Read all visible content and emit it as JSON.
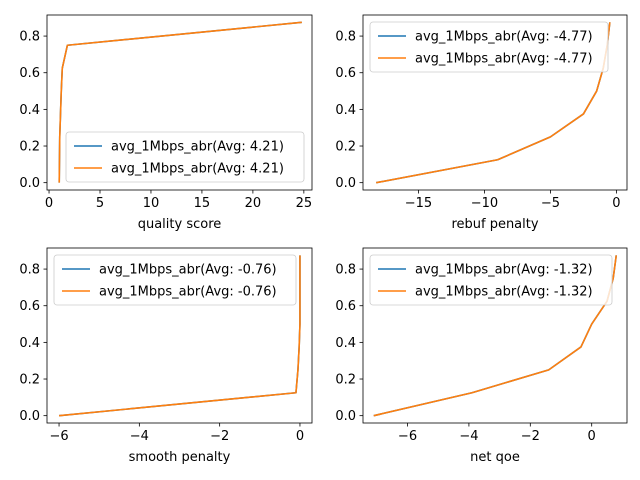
{
  "figure": {
    "background": "#ffffff"
  },
  "series_colors": [
    "#1f77b4",
    "#ff7f0e"
  ],
  "chart_data": [
    {
      "type": "line",
      "xlabel": "quality score",
      "xlim": [
        -0.2,
        25.8
      ],
      "ylim": [
        -0.04,
        0.915
      ],
      "xticks": [
        0,
        5,
        10,
        15,
        20,
        25
      ],
      "xtick_labels": [
        "0",
        "5",
        "10",
        "15",
        "20",
        "25"
      ],
      "yticks": [
        0.0,
        0.2,
        0.4,
        0.6,
        0.8
      ],
      "ytick_labels": [
        "0.0",
        "0.2",
        "0.4",
        "0.6",
        "0.8"
      ],
      "legend_loc": "lower-right",
      "series": [
        {
          "name": "avg_1Mbps_abr(Avg: 4.21)",
          "x": [
            1.0,
            1.05,
            1.2,
            1.3,
            1.8,
            24.8
          ],
          "y": [
            0.0,
            0.25,
            0.5,
            0.625,
            0.75,
            0.875
          ]
        },
        {
          "name": "avg_1Mbps_abr(Avg: 4.21)",
          "x": [
            1.0,
            1.05,
            1.2,
            1.3,
            1.8,
            24.8
          ],
          "y": [
            0.0,
            0.25,
            0.5,
            0.625,
            0.75,
            0.875
          ]
        }
      ]
    },
    {
      "type": "line",
      "xlabel": "rebuf penalty",
      "xlim": [
        -19.2,
        0.8
      ],
      "ylim": [
        -0.04,
        0.915
      ],
      "xticks": [
        -15,
        -10,
        -5,
        0
      ],
      "xtick_labels": [
        "−15",
        "−10",
        "−5",
        "0"
      ],
      "yticks": [
        0.0,
        0.2,
        0.4,
        0.6,
        0.8
      ],
      "ytick_labels": [
        "0.0",
        "0.2",
        "0.4",
        "0.6",
        "0.8"
      ],
      "legend_loc": "upper-left",
      "series": [
        {
          "name": "avg_1Mbps_abr(Avg: -4.77)",
          "x": [
            -18.2,
            -9.0,
            -5.0,
            -2.5,
            -1.5,
            -1.0,
            -0.7,
            -0.5
          ],
          "y": [
            0.0,
            0.125,
            0.25,
            0.375,
            0.5,
            0.625,
            0.75,
            0.875
          ]
        },
        {
          "name": "avg_1Mbps_abr(Avg: -4.77)",
          "x": [
            -18.2,
            -9.0,
            -5.0,
            -2.5,
            -1.5,
            -1.0,
            -0.7,
            -0.5
          ],
          "y": [
            0.0,
            0.125,
            0.25,
            0.375,
            0.5,
            0.625,
            0.75,
            0.875
          ]
        }
      ]
    },
    {
      "type": "line",
      "xlabel": "smooth penalty",
      "xlim": [
        -6.3,
        0.3
      ],
      "ylim": [
        -0.04,
        0.915
      ],
      "xticks": [
        -6,
        -4,
        -2,
        0
      ],
      "xtick_labels": [
        "−6",
        "−4",
        "−2",
        "0"
      ],
      "yticks": [
        0.0,
        0.2,
        0.4,
        0.6,
        0.8
      ],
      "ytick_labels": [
        "0.0",
        "0.2",
        "0.4",
        "0.6",
        "0.8"
      ],
      "legend_loc": "upper-left",
      "series": [
        {
          "name": "avg_1Mbps_abr(Avg: -0.76)",
          "x": [
            -6.0,
            -0.1,
            -0.05,
            -0.02,
            0.0,
            0.0,
            0.0
          ],
          "y": [
            0.0,
            0.125,
            0.25,
            0.375,
            0.5,
            0.625,
            0.875
          ]
        },
        {
          "name": "avg_1Mbps_abr(Avg: -0.76)",
          "x": [
            -6.0,
            -0.1,
            -0.05,
            -0.02,
            0.0,
            0.0,
            0.0
          ],
          "y": [
            0.0,
            0.125,
            0.25,
            0.375,
            0.5,
            0.625,
            0.875
          ]
        }
      ]
    },
    {
      "type": "line",
      "xlabel": "net qoe",
      "xlim": [
        -7.45,
        1.15
      ],
      "ylim": [
        -0.04,
        0.915
      ],
      "xticks": [
        -6,
        -4,
        -2,
        0
      ],
      "xtick_labels": [
        "−6",
        "−4",
        "−2",
        "0"
      ],
      "yticks": [
        0.0,
        0.2,
        0.4,
        0.6,
        0.8
      ],
      "ytick_labels": [
        "0.0",
        "0.2",
        "0.4",
        "0.6",
        "0.8"
      ],
      "legend_loc": "upper-left",
      "series": [
        {
          "name": "avg_1Mbps_abr(Avg: -1.32)",
          "x": [
            -7.1,
            -3.9,
            -1.4,
            -0.35,
            0.0,
            0.5,
            0.7,
            0.8
          ],
          "y": [
            0.0,
            0.125,
            0.25,
            0.375,
            0.5,
            0.625,
            0.75,
            0.875
          ]
        },
        {
          "name": "avg_1Mbps_abr(Avg: -1.32)",
          "x": [
            -7.1,
            -3.9,
            -1.4,
            -0.35,
            0.0,
            0.5,
            0.7,
            0.8
          ],
          "y": [
            0.0,
            0.125,
            0.25,
            0.375,
            0.5,
            0.625,
            0.75,
            0.875
          ]
        }
      ]
    }
  ]
}
